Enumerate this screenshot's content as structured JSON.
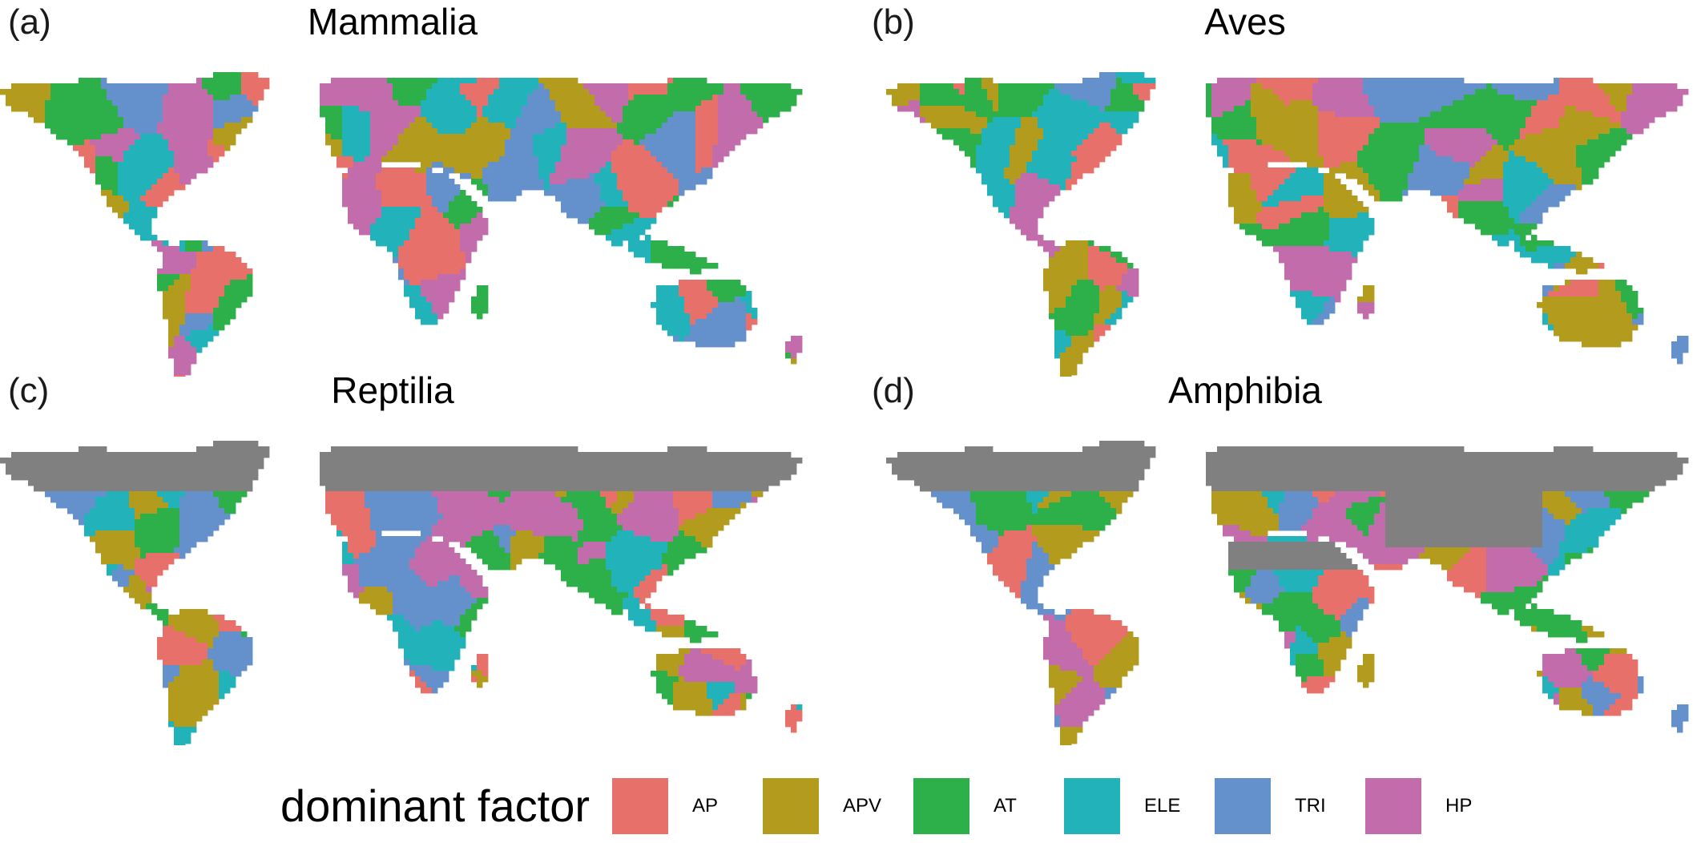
{
  "colors": {
    "AP": "#E8706A",
    "APV": "#B39B1E",
    "AT": "#2DB04A",
    "ELE": "#22B3BA",
    "TRI": "#6491CB",
    "HP": "#C26CAB",
    "none": "#808080"
  },
  "panels": [
    {
      "letter": "(a)",
      "title": "Mammalia",
      "gray_north": false,
      "gray_desert": false
    },
    {
      "letter": "(b)",
      "title": "Aves",
      "gray_north": false,
      "gray_desert": false
    },
    {
      "letter": "(c)",
      "title": "Reptilia",
      "gray_north": true,
      "gray_desert": false
    },
    {
      "letter": "(d)",
      "title": "Amphibia",
      "gray_north": true,
      "gray_desert": true
    }
  ],
  "legend": {
    "title": "dominant factor",
    "items": [
      {
        "key": "AP",
        "label": "AP"
      },
      {
        "key": "APV",
        "label": "APV"
      },
      {
        "key": "AT",
        "label": "AT"
      },
      {
        "key": "ELE",
        "label": "ELE"
      },
      {
        "key": "TRI",
        "label": "TRI"
      },
      {
        "key": "HP",
        "label": "HP"
      }
    ]
  }
}
